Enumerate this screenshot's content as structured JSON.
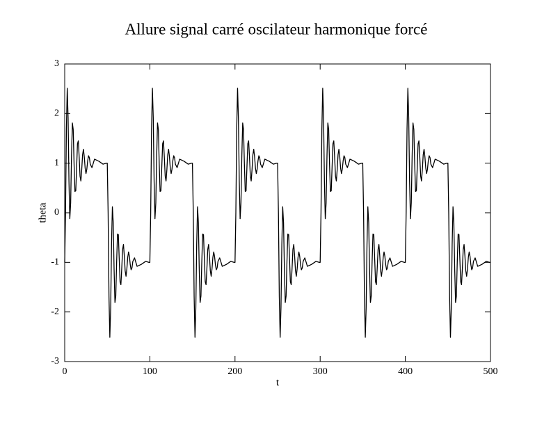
{
  "chart_data": {
    "type": "line",
    "title": "Allure signal carré oscilateur harmonique forcé",
    "x_label": "t",
    "y_label": "theta",
    "color": "#000000",
    "xlim": [
      0,
      500
    ],
    "xticks": [
      0,
      100,
      200,
      300,
      400,
      500
    ],
    "ylim": [
      -3,
      3
    ],
    "yticks": [
      -3,
      -2,
      -1,
      0,
      1,
      2,
      3
    ],
    "grid": false,
    "x": [
      0,
      1,
      2,
      3,
      4,
      5,
      6,
      7,
      8,
      9,
      10,
      11,
      12,
      13,
      14,
      15,
      16,
      17,
      18,
      19,
      20,
      21,
      22,
      23,
      24,
      25,
      26,
      27,
      28,
      29,
      30,
      32,
      35,
      40,
      45,
      49,
      50,
      51,
      52,
      53,
      54,
      55,
      56,
      57,
      58,
      59,
      60,
      61,
      62,
      63,
      64,
      65,
      66,
      67,
      68,
      69,
      70,
      71,
      72,
      73,
      74,
      75,
      76,
      77,
      78,
      79,
      80,
      82,
      85,
      90,
      95,
      99,
      100,
      101,
      102,
      103,
      104,
      105,
      106,
      107,
      108,
      109,
      110,
      111,
      112,
      113,
      114,
      115,
      116,
      117,
      118,
      119,
      120,
      121,
      122,
      123,
      124,
      125,
      126,
      127,
      128,
      129,
      130,
      132,
      135,
      140,
      145,
      149,
      150,
      151,
      152,
      153,
      154,
      155,
      156,
      157,
      158,
      159,
      160,
      161,
      162,
      163,
      164,
      165,
      166,
      167,
      168,
      169,
      170,
      171,
      172,
      173,
      174,
      175,
      176,
      177,
      178,
      179,
      180,
      182,
      185,
      190,
      195,
      199,
      200,
      201,
      202,
      203,
      204,
      205,
      206,
      207,
      208,
      209,
      210,
      211,
      212,
      213,
      214,
      215,
      216,
      217,
      218,
      219,
      220,
      221,
      222,
      223,
      224,
      225,
      226,
      227,
      228,
      229,
      230,
      232,
      235,
      240,
      245,
      249,
      250,
      251,
      252,
      253,
      254,
      255,
      256,
      257,
      258,
      259,
      260,
      261,
      262,
      263,
      264,
      265,
      266,
      267,
      268,
      269,
      270,
      271,
      272,
      273,
      274,
      275,
      276,
      277,
      278,
      279,
      280,
      282,
      285,
      290,
      295,
      299,
      300,
      301,
      302,
      303,
      304,
      305,
      306,
      307,
      308,
      309,
      310,
      311,
      312,
      313,
      314,
      315,
      316,
      317,
      318,
      319,
      320,
      321,
      322,
      323,
      324,
      325,
      326,
      327,
      328,
      329,
      330,
      332,
      335,
      340,
      345,
      349,
      350,
      351,
      352,
      353,
      354,
      355,
      356,
      357,
      358,
      359,
      360,
      361,
      362,
      363,
      364,
      365,
      366,
      367,
      368,
      369,
      370,
      371,
      372,
      373,
      374,
      375,
      376,
      377,
      378,
      379,
      380,
      382,
      385,
      390,
      395,
      399,
      400,
      401,
      402,
      403,
      404,
      405,
      406,
      407,
      408,
      409,
      410,
      411,
      412,
      413,
      414,
      415,
      416,
      417,
      418,
      419,
      420,
      421,
      422,
      423,
      424,
      425,
      426,
      427,
      428,
      429,
      430,
      432,
      435,
      440,
      445,
      449,
      450,
      451,
      452,
      453,
      454,
      455,
      456,
      457,
      458,
      459,
      460,
      461,
      462,
      463,
      464,
      465,
      466,
      467,
      468,
      469,
      470,
      471,
      472,
      473,
      474,
      475,
      476,
      477,
      478,
      479,
      480,
      482,
      485,
      490,
      495,
      499,
      500
    ],
    "values": [
      -1,
      0.01,
      1.69,
      2.51,
      1.91,
      0.64,
      -0.12,
      0.2,
      1.14,
      1.81,
      1.68,
      0.99,
      0.43,
      0.44,
      0.92,
      1.39,
      1.45,
      1.12,
      0.74,
      0.64,
      0.87,
      1.17,
      1.28,
      1.13,
      0.9,
      0.79,
      0.88,
      1.05,
      1.15,
      1.11,
      0.98,
      0.91,
      1.08,
      1.04,
      0.98,
      1,
      1,
      -0.01,
      -1.69,
      -2.51,
      -1.91,
      -0.64,
      0.12,
      -0.2,
      -1.14,
      -1.81,
      -1.68,
      -0.99,
      -0.43,
      -0.44,
      -0.92,
      -1.39,
      -1.45,
      -1.12,
      -0.74,
      -0.64,
      -0.87,
      -1.17,
      -1.28,
      -1.13,
      -0.9,
      -0.79,
      -0.88,
      -1.05,
      -1.15,
      -1.11,
      -0.98,
      -0.91,
      -1.08,
      -1.04,
      -0.98,
      -1,
      -1,
      0.01,
      1.69,
      2.51,
      1.91,
      0.64,
      -0.12,
      0.2,
      1.14,
      1.81,
      1.68,
      0.99,
      0.43,
      0.44,
      0.92,
      1.39,
      1.45,
      1.12,
      0.74,
      0.64,
      0.87,
      1.17,
      1.28,
      1.13,
      0.9,
      0.79,
      0.88,
      1.05,
      1.15,
      1.11,
      0.98,
      0.91,
      1.08,
      1.04,
      0.98,
      1,
      1,
      -0.01,
      -1.69,
      -2.51,
      -1.91,
      -0.64,
      0.12,
      -0.2,
      -1.14,
      -1.81,
      -1.68,
      -0.99,
      -0.43,
      -0.44,
      -0.92,
      -1.39,
      -1.45,
      -1.12,
      -0.74,
      -0.64,
      -0.87,
      -1.17,
      -1.28,
      -1.13,
      -0.9,
      -0.79,
      -0.88,
      -1.05,
      -1.15,
      -1.11,
      -0.98,
      -0.91,
      -1.08,
      -1.04,
      -0.98,
      -1,
      -1,
      0.01,
      1.69,
      2.51,
      1.91,
      0.64,
      -0.12,
      0.2,
      1.14,
      1.81,
      1.68,
      0.99,
      0.43,
      0.44,
      0.92,
      1.39,
      1.45,
      1.12,
      0.74,
      0.64,
      0.87,
      1.17,
      1.28,
      1.13,
      0.9,
      0.79,
      0.88,
      1.05,
      1.15,
      1.11,
      0.98,
      0.91,
      1.08,
      1.04,
      0.98,
      1,
      1,
      -0.01,
      -1.69,
      -2.51,
      -1.91,
      -0.64,
      0.12,
      -0.2,
      -1.14,
      -1.81,
      -1.68,
      -0.99,
      -0.43,
      -0.44,
      -0.92,
      -1.39,
      -1.45,
      -1.12,
      -0.74,
      -0.64,
      -0.87,
      -1.17,
      -1.28,
      -1.13,
      -0.9,
      -0.79,
      -0.88,
      -1.05,
      -1.15,
      -1.11,
      -0.98,
      -0.91,
      -1.08,
      -1.04,
      -0.98,
      -1,
      -1,
      0.01,
      1.69,
      2.51,
      1.91,
      0.64,
      -0.12,
      0.2,
      1.14,
      1.81,
      1.68,
      0.99,
      0.43,
      0.44,
      0.92,
      1.39,
      1.45,
      1.12,
      0.74,
      0.64,
      0.87,
      1.17,
      1.28,
      1.13,
      0.9,
      0.79,
      0.88,
      1.05,
      1.15,
      1.11,
      0.98,
      0.91,
      1.08,
      1.04,
      0.98,
      1,
      1,
      -0.01,
      -1.69,
      -2.51,
      -1.91,
      -0.64,
      0.12,
      -0.2,
      -1.14,
      -1.81,
      -1.68,
      -0.99,
      -0.43,
      -0.44,
      -0.92,
      -1.39,
      -1.45,
      -1.12,
      -0.74,
      -0.64,
      -0.87,
      -1.17,
      -1.28,
      -1.13,
      -0.9,
      -0.79,
      -0.88,
      -1.05,
      -1.15,
      -1.11,
      -0.98,
      -0.91,
      -1.08,
      -1.04,
      -0.98,
      -1,
      -1,
      0.01,
      1.69,
      2.51,
      1.91,
      0.64,
      -0.12,
      0.2,
      1.14,
      1.81,
      1.68,
      0.99,
      0.43,
      0.44,
      0.92,
      1.39,
      1.45,
      1.12,
      0.74,
      0.64,
      0.87,
      1.17,
      1.28,
      1.13,
      0.9,
      0.79,
      0.88,
      1.05,
      1.15,
      1.11,
      0.98,
      0.91,
      1.08,
      1.04,
      0.98,
      1,
      1,
      -0.01,
      -1.69,
      -2.51,
      -1.91,
      -0.64,
      0.12,
      -0.2,
      -1.14,
      -1.81,
      -1.68,
      -0.99,
      -0.43,
      -0.44,
      -0.92,
      -1.39,
      -1.45,
      -1.12,
      -0.74,
      -0.64,
      -0.87,
      -1.17,
      -1.28,
      -1.13,
      -0.9,
      -0.79,
      -0.88,
      -1.05,
      -1.15,
      -1.11,
      -0.98,
      -0.91,
      -1.08,
      -1.04,
      -0.98,
      -1,
      -1
    ]
  }
}
